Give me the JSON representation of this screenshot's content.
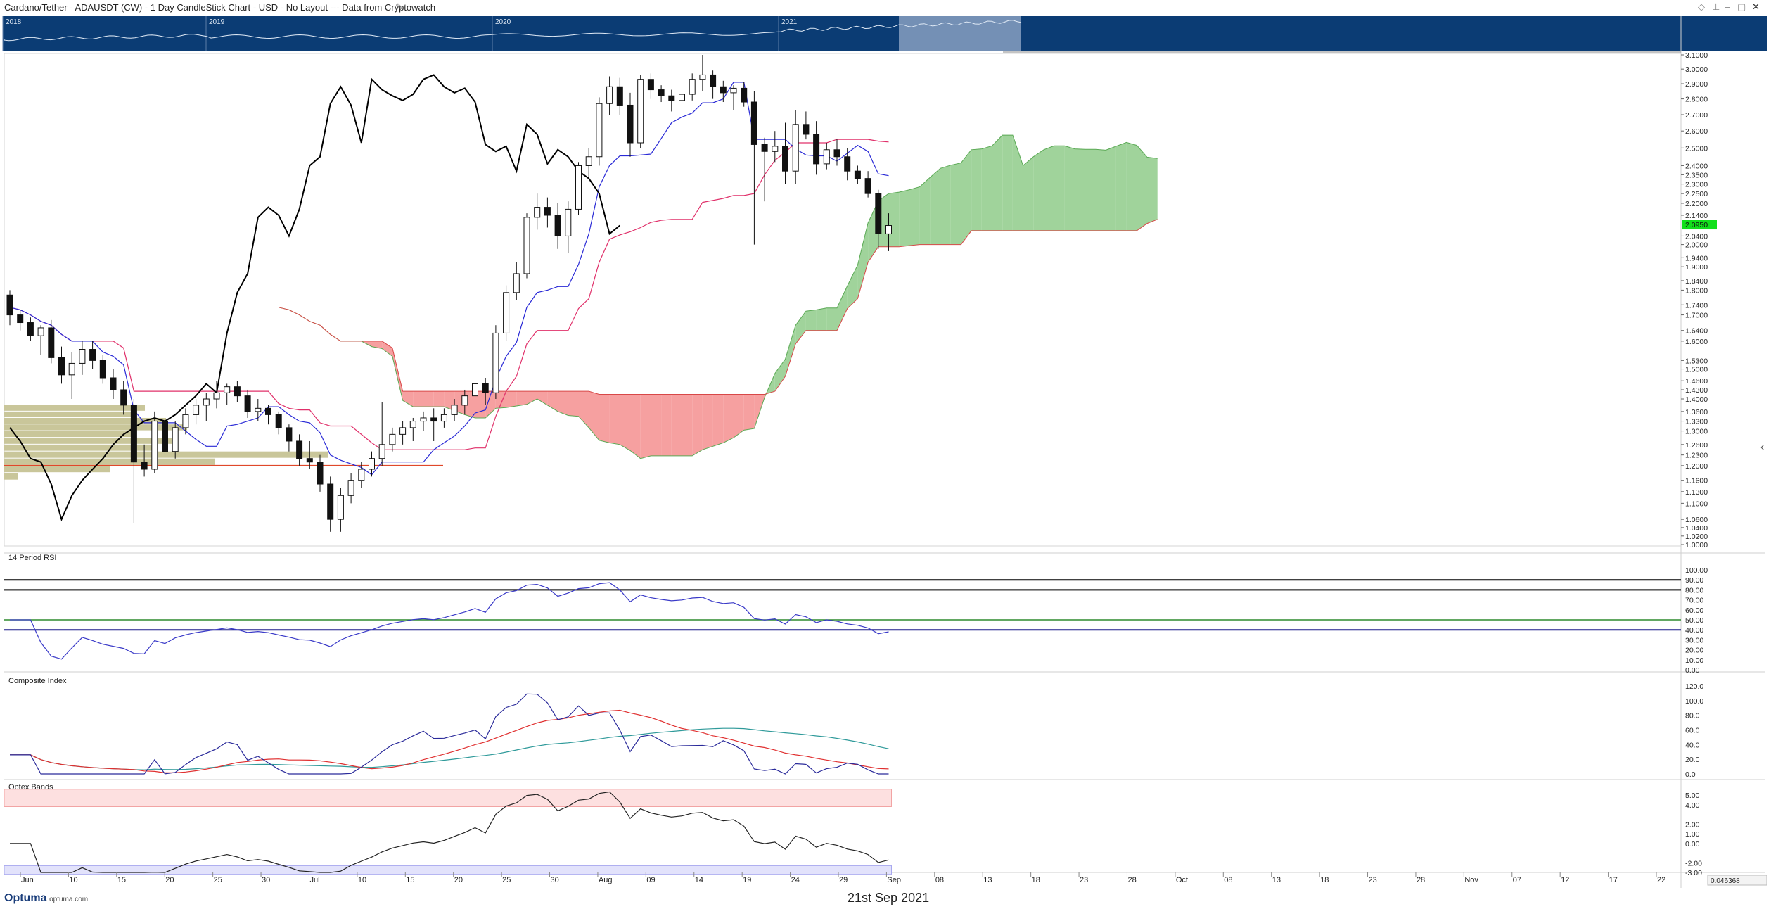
{
  "window": {
    "title": "Cardano/Tether - ADAUSDT (CW) - 1 Day CandleStick Chart - USD - No Layout --- Data from Cryptowatch"
  },
  "navigator": {
    "years": [
      "2018",
      "2019",
      "2020",
      "2021"
    ]
  },
  "price_axis_labels": [
    "3.1000",
    "3.0000",
    "2.9000",
    "2.8000",
    "2.7000",
    "2.6000",
    "2.5000",
    "2.4000",
    "2.3500",
    "2.3000",
    "2.2500",
    "2.2000",
    "2.1400",
    "2.0400",
    "2.0000",
    "1.9400",
    "1.9000",
    "1.8400",
    "1.8000",
    "1.7400",
    "1.7000",
    "1.6400",
    "1.6000",
    "1.5300",
    "1.5000",
    "1.4600",
    "1.4300",
    "1.4000",
    "1.3600",
    "1.3300",
    "1.3000",
    "1.2600",
    "1.2300",
    "1.2000",
    "1.1600",
    "1.1300",
    "1.1000",
    "1.0600",
    "1.0400",
    "1.0200",
    "1.0000"
  ],
  "last_price": "2.0950",
  "panes": {
    "rsi": {
      "title": "14 Period RSI",
      "axis_labels": [
        "100.00",
        "90.00",
        "80.00",
        "70.00",
        "60.00",
        "50.00",
        "40.00",
        "30.00",
        "20.00",
        "10.00",
        "0.00"
      ]
    },
    "composite": {
      "title": "Composite Index",
      "axis_labels": [
        "120.0",
        "100.0",
        "80.0",
        "60.0",
        "40.0",
        "20.0",
        "0.0"
      ]
    },
    "optex": {
      "title": "Optex Bands",
      "axis_labels": [
        "5.00",
        "4.00",
        "2.00",
        "1.00",
        "0.00",
        "-2.00",
        "-3.00"
      ]
    }
  },
  "x_axis_labels": [
    "Jun",
    "10",
    "15",
    "20",
    "25",
    "30",
    "Jul",
    "10",
    "15",
    "20",
    "25",
    "30",
    "Aug",
    "09",
    "14",
    "19",
    "24",
    "29",
    "Sep",
    "08",
    "13",
    "18",
    "23",
    "28",
    "Oct",
    "08",
    "13",
    "18",
    "23",
    "28",
    "Nov",
    "07",
    "12",
    "17",
    "22"
  ],
  "x_axis_right_value": "0.046368",
  "footer": {
    "date": "21st Sep 2021",
    "logo_name": "Optuma",
    "logo_url": "optuma.com"
  },
  "colors": {
    "navigator_bg": "#0b3c74",
    "cloud_bull": "#8fcb8a",
    "cloud_bear": "#f58f8f",
    "tenkan": "#2a2ad6",
    "kijun": "#e0306a",
    "chikou": "#000000",
    "last_price_bg": "#11e01b",
    "volume_profile": "#c9c69a"
  },
  "chart_data": {
    "type": "candlestick",
    "title": "Cardano/Tether - ADAUSDT (CW) - 1 Day CandleStick Chart",
    "y_scale": "log",
    "ylim": [
      1.0,
      3.1
    ],
    "x_start": "2021-06-04",
    "x_end": "2021-09-21",
    "indicators": [
      "Ichimoku Cloud",
      "14 Period RSI",
      "Composite Index",
      "Optex Bands"
    ],
    "candles_ohlc": [
      [
        1.78,
        1.8,
        1.66,
        1.7
      ],
      [
        1.7,
        1.72,
        1.64,
        1.67
      ],
      [
        1.67,
        1.69,
        1.6,
        1.62
      ],
      [
        1.62,
        1.66,
        1.55,
        1.65
      ],
      [
        1.65,
        1.68,
        1.52,
        1.54
      ],
      [
        1.54,
        1.58,
        1.45,
        1.48
      ],
      [
        1.48,
        1.56,
        1.4,
        1.52
      ],
      [
        1.52,
        1.6,
        1.48,
        1.57
      ],
      [
        1.57,
        1.6,
        1.5,
        1.53
      ],
      [
        1.53,
        1.55,
        1.45,
        1.47
      ],
      [
        1.47,
        1.5,
        1.4,
        1.43
      ],
      [
        1.43,
        1.46,
        1.35,
        1.38
      ],
      [
        1.38,
        1.4,
        1.05,
        1.21
      ],
      [
        1.21,
        1.26,
        1.17,
        1.19
      ],
      [
        1.19,
        1.36,
        1.18,
        1.33
      ],
      [
        1.33,
        1.37,
        1.2,
        1.24
      ],
      [
        1.24,
        1.33,
        1.22,
        1.31
      ],
      [
        1.31,
        1.37,
        1.29,
        1.35
      ],
      [
        1.35,
        1.4,
        1.32,
        1.38
      ],
      [
        1.38,
        1.42,
        1.33,
        1.4
      ],
      [
        1.4,
        1.46,
        1.37,
        1.42
      ],
      [
        1.42,
        1.45,
        1.38,
        1.44
      ],
      [
        1.44,
        1.46,
        1.39,
        1.41
      ],
      [
        1.41,
        1.43,
        1.34,
        1.36
      ],
      [
        1.36,
        1.4,
        1.33,
        1.37
      ],
      [
        1.37,
        1.38,
        1.32,
        1.35
      ],
      [
        1.35,
        1.36,
        1.29,
        1.31
      ],
      [
        1.31,
        1.32,
        1.24,
        1.27
      ],
      [
        1.27,
        1.29,
        1.2,
        1.22
      ],
      [
        1.22,
        1.27,
        1.19,
        1.21
      ],
      [
        1.21,
        1.23,
        1.13,
        1.15
      ],
      [
        1.15,
        1.17,
        1.03,
        1.06
      ],
      [
        1.06,
        1.14,
        1.03,
        1.12
      ],
      [
        1.12,
        1.18,
        1.1,
        1.16
      ],
      [
        1.16,
        1.21,
        1.14,
        1.19
      ],
      [
        1.19,
        1.24,
        1.17,
        1.22
      ],
      [
        1.22,
        1.39,
        1.2,
        1.26
      ],
      [
        1.26,
        1.31,
        1.24,
        1.29
      ],
      [
        1.29,
        1.33,
        1.26,
        1.31
      ],
      [
        1.31,
        1.34,
        1.27,
        1.33
      ],
      [
        1.33,
        1.36,
        1.3,
        1.34
      ],
      [
        1.34,
        1.37,
        1.27,
        1.33
      ],
      [
        1.33,
        1.37,
        1.31,
        1.35
      ],
      [
        1.35,
        1.4,
        1.33,
        1.38
      ],
      [
        1.38,
        1.43,
        1.35,
        1.41
      ],
      [
        1.41,
        1.47,
        1.39,
        1.45
      ],
      [
        1.45,
        1.47,
        1.38,
        1.42
      ],
      [
        1.42,
        1.66,
        1.4,
        1.63
      ],
      [
        1.63,
        1.82,
        1.6,
        1.79
      ],
      [
        1.79,
        1.92,
        1.76,
        1.87
      ],
      [
        1.87,
        2.15,
        1.85,
        2.13
      ],
      [
        2.13,
        2.25,
        2.07,
        2.18
      ],
      [
        2.18,
        2.23,
        2.08,
        2.14
      ],
      [
        2.14,
        2.2,
        1.98,
        2.04
      ],
      [
        2.04,
        2.21,
        1.96,
        2.17
      ],
      [
        2.17,
        2.42,
        2.14,
        2.4
      ],
      [
        2.4,
        2.5,
        2.33,
        2.45
      ],
      [
        2.45,
        2.81,
        2.4,
        2.77
      ],
      [
        2.77,
        2.95,
        2.7,
        2.88
      ],
      [
        2.88,
        2.94,
        2.7,
        2.76
      ],
      [
        2.76,
        2.84,
        2.45,
        2.53
      ],
      [
        2.53,
        2.96,
        2.5,
        2.93
      ],
      [
        2.93,
        2.97,
        2.8,
        2.86
      ],
      [
        2.86,
        2.89,
        2.78,
        2.82
      ],
      [
        2.82,
        2.86,
        2.72,
        2.79
      ],
      [
        2.79,
        2.85,
        2.75,
        2.83
      ],
      [
        2.83,
        2.97,
        2.79,
        2.93
      ],
      [
        2.93,
        3.1,
        2.85,
        2.96
      ],
      [
        2.96,
        2.99,
        2.8,
        2.88
      ],
      [
        2.88,
        2.92,
        2.78,
        2.84
      ],
      [
        2.84,
        2.89,
        2.73,
        2.87
      ],
      [
        2.87,
        2.91,
        2.75,
        2.78
      ],
      [
        2.78,
        2.85,
        2.0,
        2.52
      ],
      [
        2.52,
        2.56,
        2.21,
        2.48
      ],
      [
        2.48,
        2.6,
        2.42,
        2.51
      ],
      [
        2.51,
        2.65,
        2.3,
        2.37
      ],
      [
        2.37,
        2.73,
        2.3,
        2.64
      ],
      [
        2.64,
        2.72,
        2.55,
        2.58
      ],
      [
        2.58,
        2.66,
        2.35,
        2.41
      ],
      [
        2.41,
        2.53,
        2.38,
        2.49
      ],
      [
        2.49,
        2.55,
        2.4,
        2.45
      ],
      [
        2.45,
        2.5,
        2.32,
        2.37
      ],
      [
        2.37,
        2.4,
        2.3,
        2.33
      ],
      [
        2.33,
        2.37,
        2.23,
        2.25
      ],
      [
        2.25,
        2.27,
        1.98,
        2.05
      ],
      [
        2.05,
        2.15,
        1.97,
        2.09
      ]
    ],
    "last_price": 2.095,
    "rsi_ylim": [
      0,
      100
    ],
    "rsi_levels": [
      90,
      80,
      50,
      40
    ],
    "composite_ylim": [
      0,
      120
    ],
    "optex_ylim": [
      -3,
      5
    ]
  }
}
